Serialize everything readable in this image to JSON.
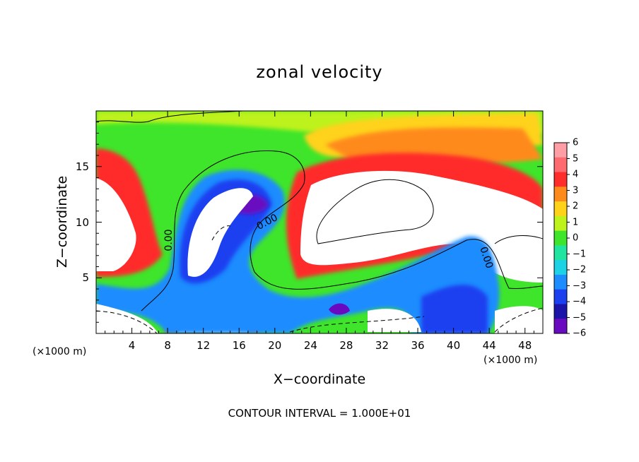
{
  "chart_data": {
    "type": "heatmap",
    "title": "zonal velocity",
    "xlabel": "X−coordinate",
    "ylabel": "Z−coordinate",
    "x_units": "(×1000 m)",
    "footnote": "CONTOUR INTERVAL = 1.000E+01",
    "xlim": [
      0,
      50
    ],
    "ylim": [
      0,
      20
    ],
    "x_ticks": [
      "4",
      "8",
      "12",
      "16",
      "20",
      "24",
      "28",
      "32",
      "36",
      "40",
      "44",
      "48"
    ],
    "y_ticks": [
      "5",
      "10",
      "15"
    ],
    "colorbar": {
      "range": [
        -6,
        6
      ],
      "labels": [
        "6",
        "5",
        "4",
        "3",
        "2",
        "1",
        "0",
        "−1",
        "−2",
        "−3",
        "−4",
        "−5",
        "−6"
      ],
      "colors": [
        "#ff9ea4",
        "#ff6a70",
        "#ff2c2c",
        "#ff8a1c",
        "#ffd21a",
        "#bdf21a",
        "#3fe52a",
        "#20e5a0",
        "#1ed2e6",
        "#1c8cff",
        "#1c40f0",
        "#1c14a8",
        "#6a0ac0"
      ]
    },
    "contour_labels": [
      "0.00",
      "0.00",
      "0.00"
    ],
    "grid": false,
    "legend": "colorbar right"
  }
}
